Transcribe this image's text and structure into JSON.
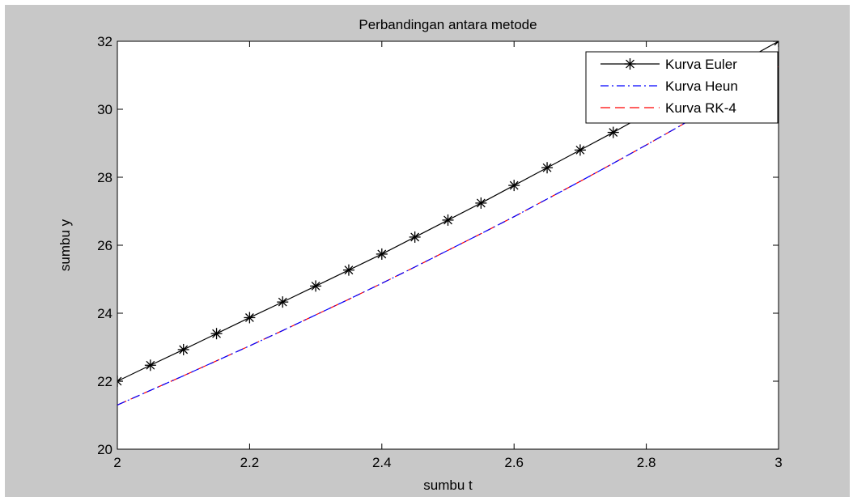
{
  "chart_data": {
    "type": "line",
    "title": "Perbandingan antara metode",
    "xlabel": "sumbu t",
    "ylabel": "sumbu y",
    "xlim": [
      2,
      3
    ],
    "ylim": [
      20,
      32
    ],
    "xticks": [
      "2",
      "2.2",
      "2.4",
      "2.6",
      "2.8",
      "3"
    ],
    "yticks": [
      "20",
      "22",
      "24",
      "26",
      "28",
      "30",
      "32"
    ],
    "grid": false,
    "legend_position": "top-right",
    "x": [
      2.0,
      2.05,
      2.1,
      2.15,
      2.2,
      2.25,
      2.3,
      2.35,
      2.4,
      2.45,
      2.5,
      2.55,
      2.6,
      2.65,
      2.7,
      2.75,
      2.8,
      2.85,
      2.9,
      2.95,
      3.0
    ],
    "series": [
      {
        "name": "Kurva Euler",
        "color": "#000000",
        "style": "solid",
        "marker": "asterisk",
        "values": [
          22.0,
          22.47,
          22.93,
          23.4,
          23.87,
          24.33,
          24.8,
          25.27,
          25.74,
          26.24,
          26.74,
          27.24,
          27.76,
          28.28,
          28.8,
          29.32,
          29.86,
          30.4,
          30.94,
          31.46,
          32.0
        ]
      },
      {
        "name": "Kurva Heun",
        "color": "#0000ff",
        "style": "dashdot",
        "values": [
          21.3,
          21.73,
          22.16,
          22.6,
          23.04,
          23.49,
          23.95,
          24.41,
          24.88,
          25.36,
          25.85,
          26.34,
          26.84,
          27.36,
          27.88,
          28.41,
          28.95,
          29.5,
          30.07,
          30.66,
          31.25
        ]
      },
      {
        "name": "Kurva RK-4",
        "color": "#ff0000",
        "style": "dashed",
        "values": [
          21.3,
          21.73,
          22.16,
          22.6,
          23.04,
          23.49,
          23.95,
          24.41,
          24.88,
          25.36,
          25.85,
          26.34,
          26.84,
          27.36,
          27.88,
          28.41,
          28.95,
          29.5,
          30.07,
          30.66,
          31.25
        ]
      }
    ]
  }
}
